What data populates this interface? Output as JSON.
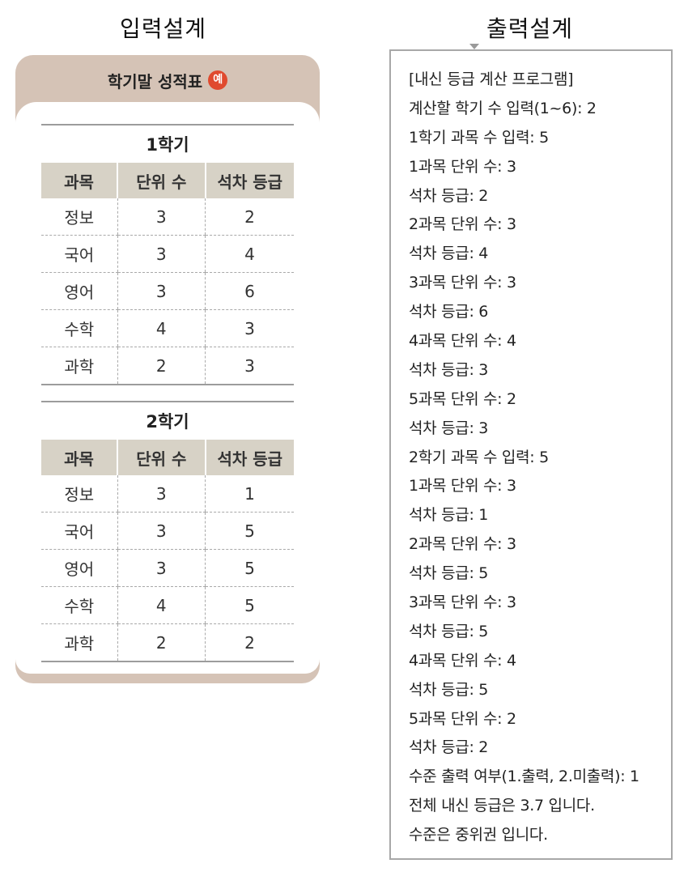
{
  "input_title": "입력설계",
  "output_title": "출력설계",
  "card": {
    "title": "학기말 성적표",
    "badge": "예"
  },
  "semesters": [
    {
      "title": "1학기",
      "headers": [
        "과목",
        "단위 수",
        "석차 등급"
      ],
      "rows": [
        [
          "정보",
          "3",
          "2"
        ],
        [
          "국어",
          "3",
          "4"
        ],
        [
          "영어",
          "3",
          "6"
        ],
        [
          "수학",
          "4",
          "3"
        ],
        [
          "과학",
          "2",
          "3"
        ]
      ]
    },
    {
      "title": "2학기",
      "headers": [
        "과목",
        "단위 수",
        "석차 등급"
      ],
      "rows": [
        [
          "정보",
          "3",
          "1"
        ],
        [
          "국어",
          "3",
          "5"
        ],
        [
          "영어",
          "3",
          "5"
        ],
        [
          "수학",
          "4",
          "5"
        ],
        [
          "과학",
          "2",
          "2"
        ]
      ]
    }
  ],
  "output_lines": [
    "[내신 등급 계산 프로그램]",
    "계산할 학기 수 입력(1~6): 2",
    "1학기 과목 수 입력: 5",
    "1과목 단위 수: 3",
    "석차 등급: 2",
    "2과목 단위 수: 3",
    "석차 등급: 4",
    "3과목 단위 수: 3",
    "석차 등급: 6",
    "4과목 단위 수: 4",
    "석차 등급: 3",
    "5과목 단위 수: 2",
    "석차 등급: 3",
    "2학기 과목 수 입력: 5",
    "1과목 단위 수: 3",
    "석차 등급: 1",
    "2과목 단위 수: 3",
    "석차 등급: 5",
    "3과목 단위 수: 3",
    "석차 등급: 5",
    "4과목 단위 수: 4",
    "석차 등급: 5",
    "5과목 단위 수: 2",
    "석차 등급: 2",
    "수준 출력 여부(1.출력, 2.미출력): 1",
    "전체 내신 등급은  3.7 입니다.",
    "수준은 중위권 입니다."
  ]
}
